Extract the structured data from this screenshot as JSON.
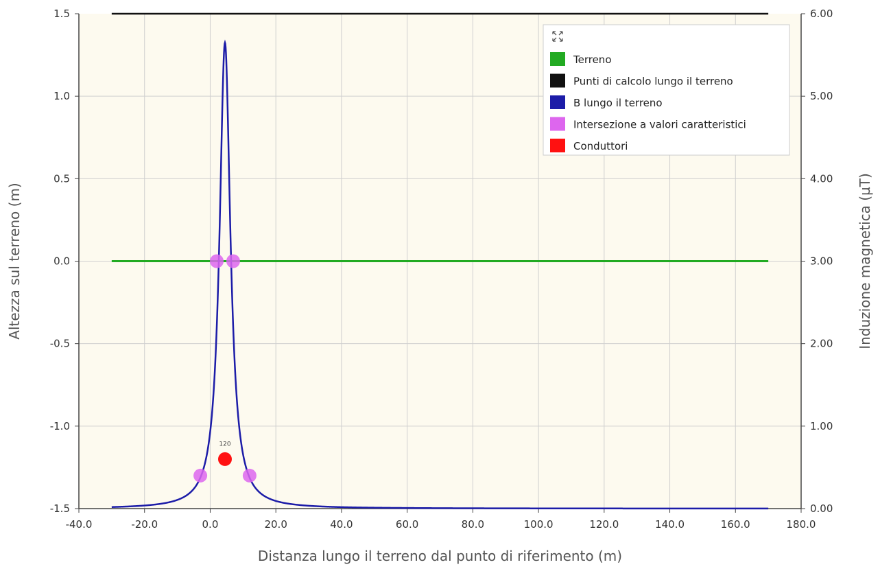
{
  "colors": {
    "plot_background": "#fdfaef",
    "grid": "#cfcfcf",
    "axis": "#444444",
    "terreno": "#22aa22",
    "punti": "#111111",
    "b_line": "#1c1ca8",
    "intersezioni": "#dd66ee",
    "conduttori": "#ff1111"
  },
  "legend": {
    "icon": "expand-icon",
    "placement": "top-right",
    "items": [
      {
        "label": "Terreno",
        "color": "#22aa22"
      },
      {
        "label": "Punti di calcolo lungo il terreno",
        "color": "#111111"
      },
      {
        "label": "B lungo il terreno",
        "color": "#1c1ca8"
      },
      {
        "label": "Intersezione a valori caratteristici",
        "color": "#dd66ee"
      },
      {
        "label": "Conduttori",
        "color": "#ff1111"
      }
    ]
  },
  "chart_data": {
    "type": "line",
    "title": "",
    "xlabel": "Distanza lungo il terreno dal punto di riferimento (m)",
    "ylabel_left": "Altezza sul terreno (m)",
    "ylabel_right": "Induzione magnetica (µT)",
    "xlim": [
      -40,
      180
    ],
    "ylim_left": [
      -1.5,
      1.5
    ],
    "ylim_right": [
      0,
      6
    ],
    "grid": true,
    "x_ticks": [
      "-40.0",
      "-20.0",
      "0.0",
      "20.0",
      "40.0",
      "60.0",
      "80.0",
      "100.0",
      "120.0",
      "140.0",
      "160.0",
      "180.0"
    ],
    "y_left_ticks": [
      "1.5",
      "1.0",
      "0.5",
      "0.0",
      "-0.5",
      "-1.0",
      "-1.5"
    ],
    "y_right_ticks": [
      "6.00",
      "5.00",
      "4.00",
      "3.00",
      "2.00",
      "1.00",
      "0.00"
    ],
    "series": [
      {
        "name": "Terreno",
        "axis": "left",
        "x": [
          -30,
          170
        ],
        "y": [
          0,
          0
        ]
      },
      {
        "name": "Punti di calcolo lungo il terreno",
        "axis": "left",
        "x": [
          -30,
          170
        ],
        "y": [
          1.5,
          1.5
        ]
      },
      {
        "name": "B lungo il terreno",
        "axis": "right",
        "peak_x": 4.5,
        "peak_y": 5.65,
        "x_range": [
          -30,
          170
        ],
        "sample_x": [
          -30,
          -20,
          -10,
          -5,
          0,
          2,
          3.5,
          4.5,
          5.5,
          7,
          9,
          14,
          19,
          30,
          40,
          60,
          100,
          170
        ],
        "sample_y": [
          0.01,
          0.03,
          0.12,
          0.28,
          0.85,
          1.9,
          4.0,
          5.65,
          4.0,
          1.9,
          0.85,
          0.28,
          0.12,
          0.04,
          0.02,
          0.01,
          0.005,
          0.003
        ]
      },
      {
        "name": "Intersezione a valori caratteristici",
        "axis": "left",
        "x": [
          2,
          7,
          -3,
          12
        ],
        "y": [
          0,
          0,
          -1.3,
          -1.3
        ]
      },
      {
        "name": "Conduttori",
        "axis": "left",
        "x": [
          4.5
        ],
        "y": [
          -1.2
        ]
      }
    ],
    "annotations": [
      {
        "text": "120",
        "x": 4.5,
        "y": -1.12
      }
    ]
  }
}
